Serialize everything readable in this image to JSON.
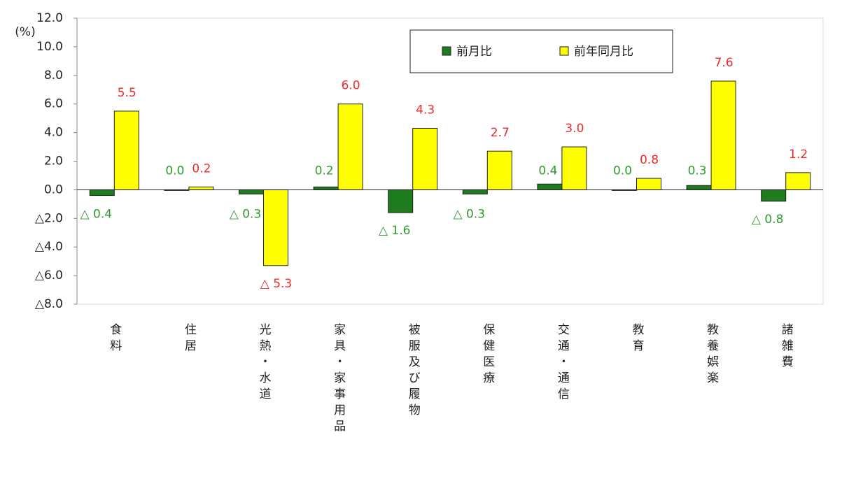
{
  "chart_data": {
    "type": "bar",
    "unit_label": "(%)",
    "categories": [
      "食料",
      "住居",
      "光熱・水道",
      "家具・家事用品",
      "被服及び履物",
      "保健医療",
      "交通・通信",
      "教育",
      "教養娯楽",
      "諸雑費"
    ],
    "series": [
      {
        "name": "前月比",
        "color": "#1e7b1e",
        "label_color": "#2e9a2e",
        "values": [
          -0.4,
          0.0,
          -0.3,
          0.2,
          -1.6,
          -0.3,
          0.4,
          0.0,
          0.3,
          -0.8
        ],
        "value_labels": [
          "△ 0.4",
          "0.0",
          "△ 0.3",
          "0.2",
          "△ 1.6",
          "△ 0.3",
          "0.4",
          "0.0",
          "0.3",
          "△ 0.8"
        ]
      },
      {
        "name": "前年同月比",
        "color": "#ffff00",
        "label_color": "#ee2b2b",
        "values": [
          5.5,
          0.2,
          -5.3,
          6.0,
          4.3,
          2.7,
          3.0,
          0.8,
          7.6,
          1.2
        ],
        "value_labels": [
          "5.5",
          "0.2",
          "△ 5.3",
          "6.0",
          "4.3",
          "2.7",
          "3.0",
          "0.8",
          "7.6",
          "1.2"
        ]
      }
    ],
    "ylim": [
      -8,
      12
    ],
    "yticks": [
      {
        "value": -8,
        "label": "△8.0"
      },
      {
        "value": -6,
        "label": "△6.0"
      },
      {
        "value": -4,
        "label": "△4.0"
      },
      {
        "value": -2,
        "label": "△2.0"
      },
      {
        "value": 0,
        "label": "0.0"
      },
      {
        "value": 2,
        "label": "2.0"
      },
      {
        "value": 4,
        "label": "4.0"
      },
      {
        "value": 6,
        "label": "6.0"
      },
      {
        "value": 8,
        "label": "8.0"
      },
      {
        "value": 10,
        "label": "10.0"
      },
      {
        "value": 12,
        "label": "12.0"
      }
    ],
    "grid": false,
    "legend": "top-right"
  }
}
